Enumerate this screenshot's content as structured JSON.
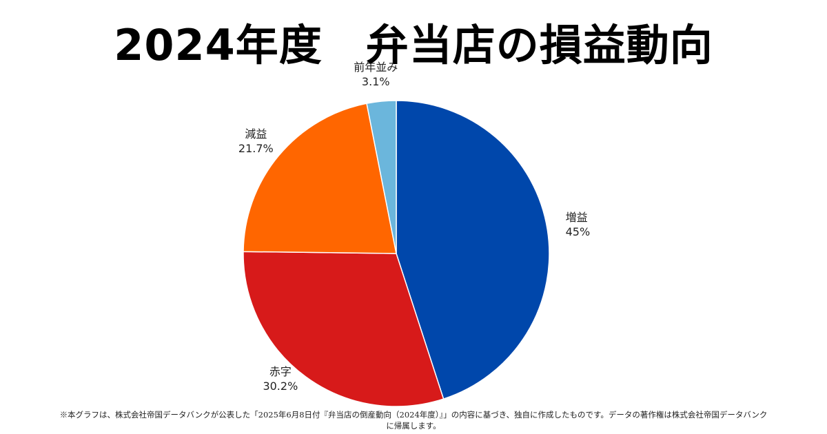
{
  "title": "2024年度　弁当店の損益動向",
  "chart_data": {
    "type": "pie",
    "title": "2024年度　弁当店の損益動向",
    "slices": [
      {
        "name": "増益",
        "value": 45,
        "label": "45%",
        "color": "#0047AB"
      },
      {
        "name": "赤字",
        "value": 30.2,
        "label": "30.2%",
        "color": "#D71A1A"
      },
      {
        "name": "減益",
        "value": 21.7,
        "label": "21.7%",
        "color": "#FF6600"
      },
      {
        "name": "前年並み",
        "value": 3.1,
        "label": "3.1%",
        "color": "#6BB6DC"
      }
    ],
    "start": "12 o'clock",
    "direction": "clockwise"
  },
  "footer": {
    "line1": "※本グラフは、株式会社帝国データバンクが公表した「2025年6月8日付『弁当店の倒産動向（2024年度）』」の内容に基づき、独自に作成したものです。データの著作権は株式会社帝国データバンク",
    "line2": "に帰属します。"
  }
}
